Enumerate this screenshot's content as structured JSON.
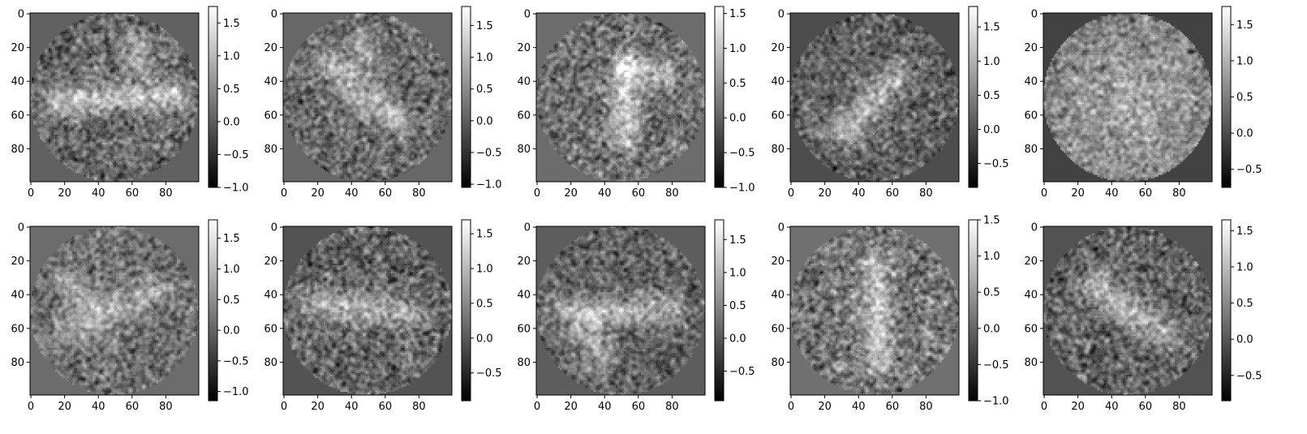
{
  "chart_data": {
    "type": "heatmap",
    "colormap": "gray",
    "frame_bg": "#ffffff",
    "x_ticks": [
      "0",
      "20",
      "40",
      "60",
      "80"
    ],
    "y_ticks": [
      "0",
      "20",
      "40",
      "60",
      "80"
    ],
    "xlim": [
      0,
      99
    ],
    "ylim": [
      99,
      0
    ],
    "grid_size": 100,
    "panels": [
      {
        "row": 0,
        "col": 0,
        "outside_value": 0.05,
        "noise_sigma": 0.42,
        "disk_mean": 0.15,
        "colorbar": {
          "min": -1.0,
          "max": 1.75,
          "ticks": [
            "1.5",
            "1.0",
            "0.5",
            "0.0",
            "−0.5",
            "−1.0"
          ],
          "tick_values": [
            1.5,
            1.0,
            0.5,
            0.0,
            -0.5,
            -1.0
          ]
        },
        "strokes": [
          {
            "x1": 15,
            "y1": 52,
            "x2": 85,
            "y2": 48,
            "w": 6,
            "a": 0.9
          },
          {
            "x1": 62,
            "y1": 18,
            "x2": 66,
            "y2": 32,
            "w": 6,
            "a": 0.7
          }
        ]
      },
      {
        "row": 0,
        "col": 1,
        "outside_value": 0.1,
        "noise_sigma": 0.42,
        "disk_mean": 0.15,
        "colorbar": {
          "min": -1.05,
          "max": 1.8,
          "ticks": [
            "1.5",
            "1.0",
            "0.5",
            "0.0",
            "−0.5",
            "−1.0"
          ],
          "tick_values": [
            1.5,
            1.0,
            0.5,
            0.0,
            -0.5,
            -1.0
          ]
        },
        "strokes": [
          {
            "x1": 28,
            "y1": 32,
            "x2": 66,
            "y2": 62,
            "w": 7,
            "a": 0.8
          },
          {
            "x1": 47,
            "y1": 18,
            "x2": 50,
            "y2": 26,
            "w": 6,
            "a": 0.6
          }
        ]
      },
      {
        "row": 0,
        "col": 2,
        "outside_value": 0.1,
        "noise_sigma": 0.42,
        "disk_mean": 0.15,
        "colorbar": {
          "min": -1.0,
          "max": 1.6,
          "ticks": [
            "1.5",
            "1.0",
            "0.5",
            "0.0",
            "−0.5",
            "−1.0"
          ],
          "tick_values": [
            1.5,
            1.0,
            0.5,
            0.0,
            -0.5,
            -1.0
          ]
        },
        "strokes": [
          {
            "x1": 52,
            "y1": 35,
            "x2": 52,
            "y2": 75,
            "w": 6,
            "a": 0.9
          },
          {
            "x1": 53,
            "y1": 30,
            "x2": 76,
            "y2": 35,
            "w": 5,
            "a": 0.8
          }
        ]
      },
      {
        "row": 0,
        "col": 3,
        "outside_value": -0.05,
        "noise_sigma": 0.38,
        "disk_mean": 0.15,
        "colorbar": {
          "min": -0.85,
          "max": 1.8,
          "ticks": [
            "1.5",
            "1.0",
            "0.5",
            "0.0",
            "−0.5"
          ],
          "tick_values": [
            1.5,
            1.0,
            0.5,
            0.0,
            -0.5
          ]
        },
        "strokes": [
          {
            "x1": 32,
            "y1": 70,
            "x2": 62,
            "y2": 38,
            "w": 7,
            "a": 0.8
          }
        ]
      },
      {
        "row": 0,
        "col": 4,
        "outside_value": -0.1,
        "noise_sigma": 0.35,
        "disk_mean": 0.45,
        "blob": {
          "cx": 50,
          "cy": 52,
          "r": 30,
          "a": 0.4
        },
        "colorbar": {
          "min": -0.75,
          "max": 1.75,
          "ticks": [
            "1.5",
            "1.0",
            "0.5",
            "0.0",
            "−0.5"
          ],
          "tick_values": [
            1.5,
            1.0,
            0.5,
            0.0,
            -0.5
          ]
        },
        "strokes": []
      },
      {
        "row": 1,
        "col": 0,
        "outside_value": 0.1,
        "noise_sigma": 0.42,
        "disk_mean": 0.15,
        "colorbar": {
          "min": -1.15,
          "max": 1.8,
          "ticks": [
            "1.5",
            "1.0",
            "0.5",
            "0.0",
            "−0.5",
            "−1.0"
          ],
          "tick_values": [
            1.5,
            1.0,
            0.5,
            0.0,
            -0.5,
            -1.0
          ]
        },
        "strokes": [
          {
            "x1": 25,
            "y1": 58,
            "x2": 72,
            "y2": 40,
            "w": 7,
            "a": 0.75
          },
          {
            "x1": 22,
            "y1": 32,
            "x2": 30,
            "y2": 42,
            "w": 6,
            "a": 0.6
          }
        ]
      },
      {
        "row": 1,
        "col": 1,
        "outside_value": -0.05,
        "noise_sigma": 0.4,
        "disk_mean": 0.12,
        "colorbar": {
          "min": -0.9,
          "max": 1.7,
          "ticks": [
            "1.5",
            "1.0",
            "0.5",
            "0.0",
            "−0.5"
          ],
          "tick_values": [
            1.5,
            1.0,
            0.5,
            0.0,
            -0.5
          ]
        },
        "strokes": [
          {
            "x1": 20,
            "y1": 45,
            "x2": 75,
            "y2": 52,
            "w": 7,
            "a": 0.7
          }
        ]
      },
      {
        "row": 1,
        "col": 2,
        "outside_value": 0.05,
        "noise_sigma": 0.4,
        "disk_mean": 0.12,
        "colorbar": {
          "min": -0.95,
          "max": 1.8,
          "ticks": [
            "1.5",
            "1.0",
            "0.5",
            "0.0",
            "−0.5"
          ],
          "tick_values": [
            1.5,
            1.0,
            0.5,
            0.0,
            -0.5
          ]
        },
        "strokes": [
          {
            "x1": 15,
            "y1": 50,
            "x2": 80,
            "y2": 48,
            "w": 6,
            "a": 0.8
          },
          {
            "x1": 30,
            "y1": 60,
            "x2": 36,
            "y2": 75,
            "w": 7,
            "a": 0.75
          }
        ]
      },
      {
        "row": 1,
        "col": 3,
        "outside_value": 0.1,
        "noise_sigma": 0.4,
        "disk_mean": 0.15,
        "colorbar": {
          "min": -1.0,
          "max": 1.5,
          "ticks": [
            "1.5",
            "1.0",
            "0.5",
            "0.0",
            "−0.5",
            "−1.0"
          ],
          "tick_values": [
            1.5,
            1.0,
            0.5,
            0.0,
            -0.5,
            -1.0
          ]
        },
        "strokes": [
          {
            "x1": 50,
            "y1": 22,
            "x2": 52,
            "y2": 80,
            "w": 6,
            "a": 0.8
          }
        ]
      },
      {
        "row": 1,
        "col": 4,
        "outside_value": -0.05,
        "noise_sigma": 0.38,
        "disk_mean": 0.12,
        "colorbar": {
          "min": -0.85,
          "max": 1.65,
          "ticks": [
            "1.5",
            "1.0",
            "0.5",
            "0.0",
            "−0.5"
          ],
          "tick_values": [
            1.5,
            1.0,
            0.5,
            0.0,
            -0.5
          ]
        },
        "strokes": [
          {
            "x1": 32,
            "y1": 35,
            "x2": 68,
            "y2": 62,
            "w": 7,
            "a": 0.8
          }
        ]
      }
    ]
  }
}
